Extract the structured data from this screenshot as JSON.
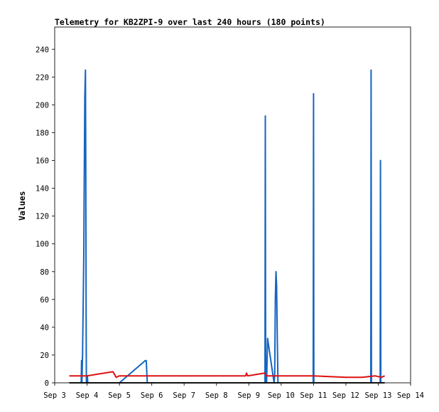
{
  "chart_data": {
    "type": "line",
    "title": "Telemetry for KB2ZPI-9 over last 240 hours (180 points)",
    "xlabel": "",
    "ylabel": "Values",
    "x_ticks": [
      "Sep 3",
      "Sep 4",
      "Sep 5",
      "Sep 6",
      "Sep 7",
      "Sep 8",
      "Sep 9",
      "Sep 10",
      "Sep 11",
      "Sep 12",
      "Sep 13",
      "Sep 14"
    ],
    "y_ticks": [
      0,
      20,
      40,
      60,
      80,
      100,
      120,
      140,
      160,
      180,
      200,
      220,
      240
    ],
    "xlim_days": [
      3,
      14
    ],
    "ylim": [
      0,
      256
    ],
    "grid": false,
    "legend": "none",
    "series": [
      {
        "color": "#1565c0",
        "x": [
          3.82,
          3.83,
          3.84,
          3.86,
          3.88,
          3.9,
          3.91,
          3.92,
          3.93,
          3.95,
          3.96,
          3.97,
          3.98,
          3.99,
          4.01,
          4.02,
          5.0,
          5.8,
          5.83,
          5.86,
          9.5,
          9.51,
          9.52,
          9.55,
          9.58,
          9.78,
          9.8,
          9.82,
          9.84,
          9.86,
          9.88,
          9.9,
          10.99,
          11.0,
          11.01,
          12.77,
          12.78,
          12.79,
          13.06,
          13.07,
          13.08
        ],
        "y": [
          0,
          16,
          0,
          20,
          56,
          94,
          132,
          168,
          206,
          225,
          168,
          56,
          0,
          5,
          5,
          0,
          0,
          16,
          16,
          0,
          0,
          192,
          0,
          0,
          32,
          0,
          5,
          60,
          80,
          70,
          30,
          0,
          0,
          208,
          0,
          0,
          225,
          0,
          0,
          160,
          0
        ]
      },
      {
        "color": "#dd1111",
        "x": [
          3.45,
          3.8,
          4.0,
          4.8,
          4.9,
          5.0,
          5.5,
          6.0,
          8.0,
          8.9,
          8.93,
          8.96,
          9.5,
          9.55,
          9.8,
          10.5,
          11.0,
          12.0,
          12.5,
          12.9,
          13.1,
          13.2
        ],
        "y": [
          5,
          5,
          5,
          8,
          4,
          5,
          5,
          5,
          5,
          5,
          7,
          5,
          7,
          5,
          5,
          5,
          5,
          4,
          4,
          5,
          4,
          5
        ]
      },
      {
        "color": "#111111",
        "x": [
          3.45,
          13.2
        ],
        "y": [
          0,
          0
        ]
      }
    ]
  }
}
